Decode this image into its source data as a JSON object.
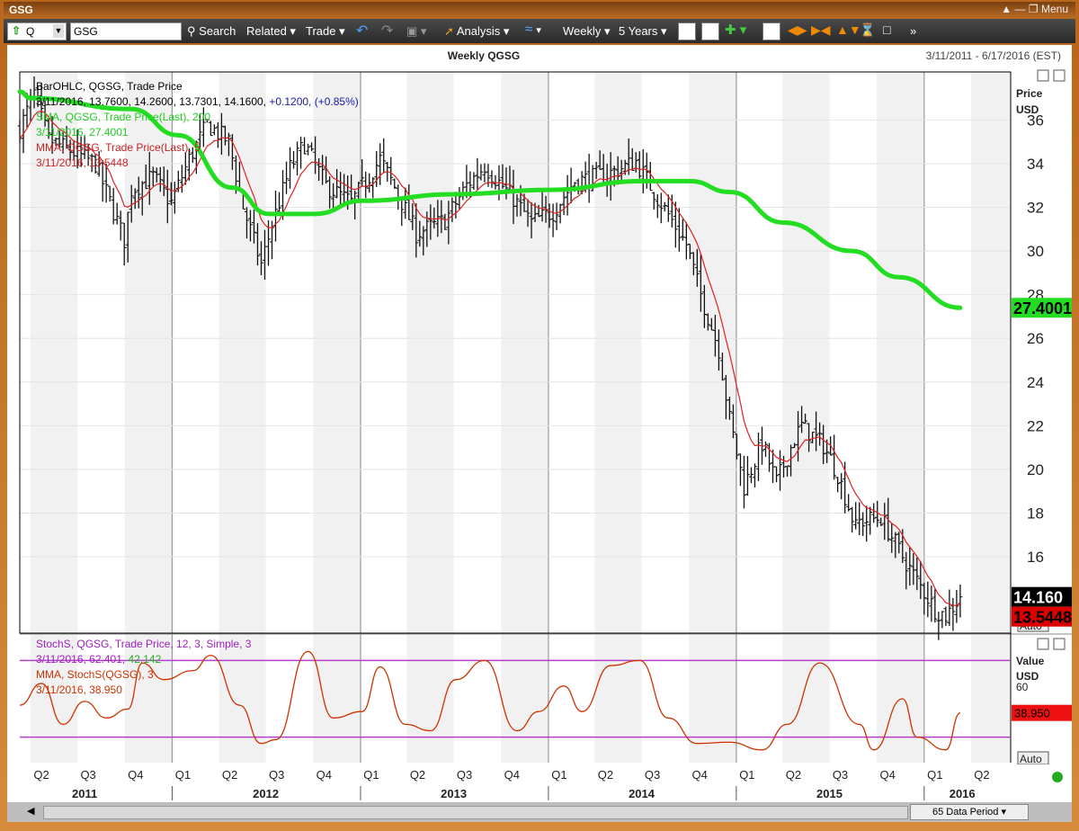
{
  "window": {
    "title": "GSG",
    "menu_label": "Menu"
  },
  "toolbar": {
    "symbol_type": "Q",
    "symbol_value": "GSG",
    "search_label": "Search",
    "related_label": "Related",
    "trade_label": "Trade",
    "analysis_label": "Analysis",
    "interval_label": "Weekly",
    "range_label": "5 Years"
  },
  "chart_header": {
    "title": "Weekly QGSG",
    "date_range": "3/11/2011 - 6/17/2016 (EST)"
  },
  "price_panel": {
    "axis_title": "Price",
    "axis_unit": "USD",
    "auto_label": "Auto",
    "legend": [
      {
        "text": "BarOHLC, QGSG, Trade Price",
        "color": "#000000"
      },
      {
        "text": "3/11/2016, 13.7600, 14.2600, 13.7301, 14.1600,",
        "color": "#000000",
        "suffix": "+0.1200, (+0.85%)",
        "suffix_color": "#1a1aa0"
      },
      {
        "text": "SMA, QGSG, Trade Price(Last),  200",
        "color": "#22cc22"
      },
      {
        "text": "3/11/2016, 27.4001",
        "color": "#22cc22"
      },
      {
        "text": "MMA, QGSG, Trade Price(Last),  5",
        "color": "#cc2222"
      },
      {
        "text": "3/11/2016, 13.5448",
        "color": "#cc2222"
      }
    ],
    "badges": [
      {
        "text": "27.4001",
        "value": 27.4001,
        "bg": "#22dd22",
        "fg": "#000000"
      },
      {
        "text": "14.160",
        "value": 14.16,
        "bg": "#000000",
        "fg": "#ffffff"
      },
      {
        "text": "13.5448",
        "value": 13.5448,
        "bg": "#dd0000",
        "fg": "#000000"
      }
    ]
  },
  "stoch_panel": {
    "axis_title": "Value",
    "axis_unit": "USD",
    "auto_label": "Auto",
    "legend": [
      {
        "text": "StochS, QGSG, Trade Price,  12, 3, Simple, 3",
        "color": "#a020c0"
      },
      {
        "text": "3/11/2016, 62.401, 42.142",
        "color": "#a020c0",
        "suffix": "42.142",
        "suffix_color": "#22aa22"
      },
      {
        "text": "MMA, StochS(QGSG),  3",
        "color": "#cc3300"
      },
      {
        "text": "3/11/2016, 38.950",
        "color": "#cc3300"
      }
    ],
    "badge": {
      "text": "38.950",
      "value": 38.95,
      "bg": "#ee1111",
      "fg": "#000000"
    }
  },
  "bottom": {
    "period_label": "65 Data Period"
  },
  "chart_data": [
    {
      "type": "ohlc",
      "title": "Weekly QGSG",
      "ylabel": "Price USD",
      "ylim": [
        12.5,
        38.2
      ],
      "yticks": [
        16,
        18,
        20,
        22,
        24,
        26,
        28,
        30,
        32,
        34,
        36
      ],
      "grid": true,
      "x_range": [
        "3/11/2011",
        "6/17/2016"
      ],
      "quarter_ticks": [
        "Q2",
        "Q3",
        "Q4",
        "Q1",
        "Q2",
        "Q3",
        "Q4",
        "Q1",
        "Q2",
        "Q3",
        "Q4",
        "Q1",
        "Q2",
        "Q3",
        "Q4",
        "Q1",
        "Q2",
        "Q3",
        "Q4",
        "Q1",
        "Q2"
      ],
      "year_labels": [
        "2011",
        "2012",
        "2013",
        "2014",
        "2015",
        "2016"
      ],
      "close_anchors": [
        {
          "date": "2011-03-11",
          "close": 35.6
        },
        {
          "date": "2011-04-08",
          "close": 37.2
        },
        {
          "date": "2011-05-06",
          "close": 35.1
        },
        {
          "date": "2011-06-17",
          "close": 34.6
        },
        {
          "date": "2011-08-05",
          "close": 34.0
        },
        {
          "date": "2011-09-30",
          "close": 30.5
        },
        {
          "date": "2011-10-14",
          "close": 32.8
        },
        {
          "date": "2011-11-25",
          "close": 33.4
        },
        {
          "date": "2011-12-30",
          "close": 32.2
        },
        {
          "date": "2012-02-03",
          "close": 34.2
        },
        {
          "date": "2012-03-09",
          "close": 35.8
        },
        {
          "date": "2012-04-20",
          "close": 35.0
        },
        {
          "date": "2012-05-18",
          "close": 32.0
        },
        {
          "date": "2012-06-22",
          "close": 29.4
        },
        {
          "date": "2012-07-13",
          "close": 31.2
        },
        {
          "date": "2012-08-17",
          "close": 33.8
        },
        {
          "date": "2012-09-14",
          "close": 34.9
        },
        {
          "date": "2012-10-26",
          "close": 33.0
        },
        {
          "date": "2012-12-14",
          "close": 32.2
        },
        {
          "date": "2013-02-08",
          "close": 34.2
        },
        {
          "date": "2013-03-15",
          "close": 32.6
        },
        {
          "date": "2013-04-19",
          "close": 30.8
        },
        {
          "date": "2013-06-14",
          "close": 31.4
        },
        {
          "date": "2013-07-26",
          "close": 33.0
        },
        {
          "date": "2013-08-30",
          "close": 33.9
        },
        {
          "date": "2013-10-25",
          "close": 32.4
        },
        {
          "date": "2013-11-29",
          "close": 31.3
        },
        {
          "date": "2014-01-10",
          "close": 31.8
        },
        {
          "date": "2014-02-21",
          "close": 33.2
        },
        {
          "date": "2014-04-25",
          "close": 33.5
        },
        {
          "date": "2014-06-20",
          "close": 34.1
        },
        {
          "date": "2014-07-25",
          "close": 32.7
        },
        {
          "date": "2014-08-29",
          "close": 31.4
        },
        {
          "date": "2014-09-26",
          "close": 30.3
        },
        {
          "date": "2014-10-24",
          "close": 28.0
        },
        {
          "date": "2014-11-28",
          "close": 25.5
        },
        {
          "date": "2014-12-19",
          "close": 22.3
        },
        {
          "date": "2015-01-16",
          "close": 19.2
        },
        {
          "date": "2015-02-20",
          "close": 21.2
        },
        {
          "date": "2015-03-20",
          "close": 19.4
        },
        {
          "date": "2015-04-24",
          "close": 21.4
        },
        {
          "date": "2015-05-08",
          "close": 22.0
        },
        {
          "date": "2015-06-19",
          "close": 21.1
        },
        {
          "date": "2015-07-17",
          "close": 19.8
        },
        {
          "date": "2015-08-21",
          "close": 17.3
        },
        {
          "date": "2015-08-28",
          "close": 17.6
        },
        {
          "date": "2015-10-09",
          "close": 17.8
        },
        {
          "date": "2015-11-20",
          "close": 16.0
        },
        {
          "date": "2015-12-18",
          "close": 14.9
        },
        {
          "date": "2016-01-22",
          "close": 13.6
        },
        {
          "date": "2016-02-12",
          "close": 13.3
        },
        {
          "date": "2016-03-11",
          "close": 14.16
        }
      ],
      "last_bar": {
        "date": "3/11/2016",
        "open": 13.76,
        "high": 14.26,
        "low": 13.7301,
        "close": 14.16,
        "change": 0.12,
        "change_pct": 0.85
      },
      "sma200": {
        "name": "SMA, QGSG, Trade Price(Last), 200",
        "color": "#22dd22",
        "last": 27.4001,
        "points": [
          {
            "date": "2011-03-11",
            "value": 37.3
          },
          {
            "date": "2011-04-01",
            "value": 37.0
          },
          {
            "date": "2011-10-14",
            "value": 36.5
          },
          {
            "date": "2012-01-13",
            "value": 35.3
          },
          {
            "date": "2012-04-27",
            "value": 32.9
          },
          {
            "date": "2012-07-06",
            "value": 31.7
          },
          {
            "date": "2012-10-05",
            "value": 31.7
          },
          {
            "date": "2013-01-04",
            "value": 32.3
          },
          {
            "date": "2013-07-05",
            "value": 32.6
          },
          {
            "date": "2014-01-03",
            "value": 32.8
          },
          {
            "date": "2014-07-04",
            "value": 33.2
          },
          {
            "date": "2014-10-03",
            "value": 33.2
          },
          {
            "date": "2014-12-19",
            "value": 32.7
          },
          {
            "date": "2015-04-03",
            "value": 31.3
          },
          {
            "date": "2015-08-14",
            "value": 30.0
          },
          {
            "date": "2015-11-13",
            "value": 28.8
          },
          {
            "date": "2016-03-11",
            "value": 27.4001
          }
        ]
      },
      "mma5": {
        "name": "MMA, QGSG, Trade Price(Last), 5",
        "color": "#dd2222",
        "last": 13.5448
      }
    },
    {
      "type": "line",
      "title": "StochS, QGSG, Trade Price, 12, 3, Simple, 3",
      "ylabel": "Value USD",
      "ylim": [
        0,
        100
      ],
      "yticks": [
        60
      ],
      "reference_lines": [
        80,
        20
      ],
      "series": [
        {
          "name": "MMA, StochS(QGSG), 3",
          "color": "#cc3300",
          "last": 38.95,
          "points": [
            {
              "date": "2011-03-11",
              "value": 45
            },
            {
              "date": "2011-04-22",
              "value": 62
            },
            {
              "date": "2011-06-03",
              "value": 30
            },
            {
              "date": "2011-07-15",
              "value": 48
            },
            {
              "date": "2011-08-26",
              "value": 35
            },
            {
              "date": "2011-10-07",
              "value": 42
            },
            {
              "date": "2011-11-04",
              "value": 78
            },
            {
              "date": "2011-12-16",
              "value": 65
            },
            {
              "date": "2012-02-10",
              "value": 72
            },
            {
              "date": "2012-03-16",
              "value": 84
            },
            {
              "date": "2012-05-11",
              "value": 45
            },
            {
              "date": "2012-06-22",
              "value": 15
            },
            {
              "date": "2012-07-20",
              "value": 18
            },
            {
              "date": "2012-09-21",
              "value": 87
            },
            {
              "date": "2012-11-09",
              "value": 35
            },
            {
              "date": "2013-01-04",
              "value": 40
            },
            {
              "date": "2013-02-08",
              "value": 75
            },
            {
              "date": "2013-03-29",
              "value": 30
            },
            {
              "date": "2013-05-17",
              "value": 25
            },
            {
              "date": "2013-07-05",
              "value": 65
            },
            {
              "date": "2013-08-30",
              "value": 80
            },
            {
              "date": "2013-11-01",
              "value": 25
            },
            {
              "date": "2013-12-13",
              "value": 40
            },
            {
              "date": "2014-01-31",
              "value": 60
            },
            {
              "date": "2014-03-07",
              "value": 40
            },
            {
              "date": "2014-05-02",
              "value": 76
            },
            {
              "date": "2014-06-27",
              "value": 80
            },
            {
              "date": "2014-08-22",
              "value": 35
            },
            {
              "date": "2014-10-17",
              "value": 15
            },
            {
              "date": "2014-12-19",
              "value": 16
            },
            {
              "date": "2015-02-20",
              "value": 10
            },
            {
              "date": "2015-04-10",
              "value": 30
            },
            {
              "date": "2015-06-12",
              "value": 78
            },
            {
              "date": "2015-08-28",
              "value": 30
            },
            {
              "date": "2015-09-25",
              "value": 10
            },
            {
              "date": "2015-11-20",
              "value": 50
            },
            {
              "date": "2015-12-18",
              "value": 20
            },
            {
              "date": "2016-02-12",
              "value": 10
            },
            {
              "date": "2016-03-11",
              "value": 38.95
            }
          ]
        }
      ],
      "stoch_last": [
        62.401,
        42.142
      ]
    }
  ]
}
